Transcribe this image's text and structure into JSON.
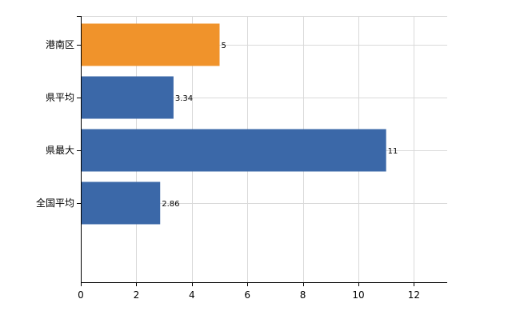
{
  "chart_data": {
    "type": "bar",
    "orientation": "horizontal",
    "categories": [
      "港南区",
      "県平均",
      "県最大",
      "全国平均"
    ],
    "values": [
      5,
      3.34,
      11,
      2.86
    ],
    "data_labels": [
      "5",
      "3.34",
      "11",
      "2.86"
    ],
    "bar_colors": [
      "#f0932b",
      "#3b68a8",
      "#3b68a8",
      "#3b68a8"
    ],
    "xlim": [
      0,
      13.2
    ],
    "xticks": [
      0,
      2,
      4,
      6,
      8,
      10,
      12
    ],
    "grid": true,
    "title": "",
    "xlabel": "",
    "ylabel": ""
  }
}
